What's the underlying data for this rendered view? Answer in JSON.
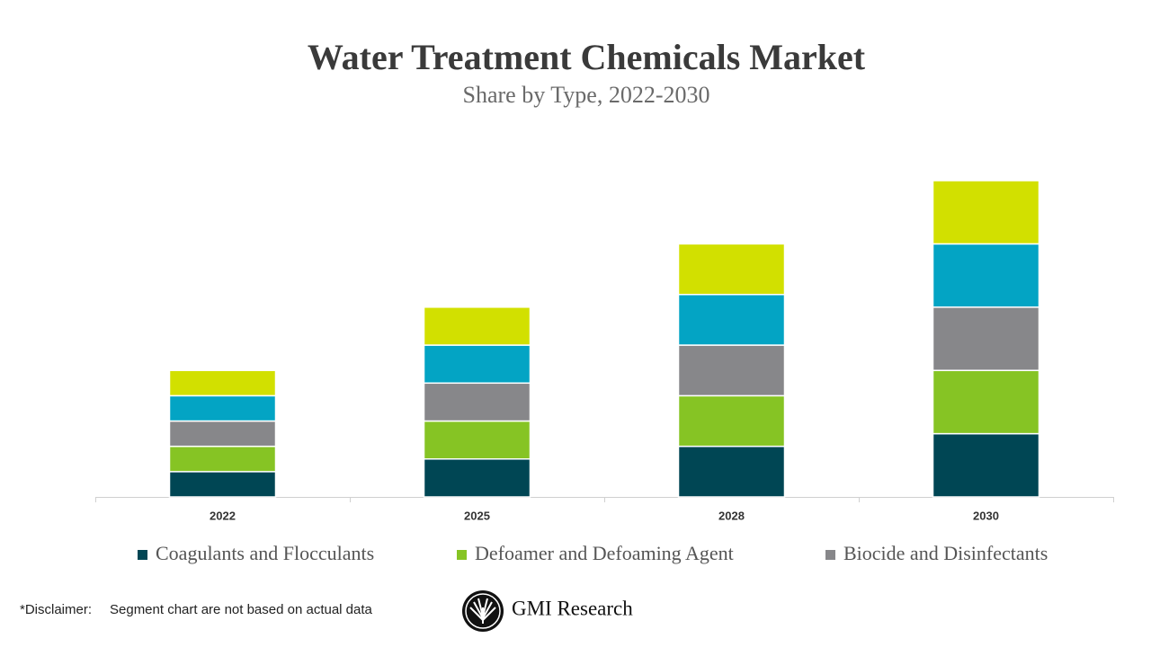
{
  "chart_data": {
    "type": "stacked_bar",
    "title": "Water Treatment Chemicals Market",
    "subtitle": "Share by Type, 2022-2030",
    "categories": [
      "2022",
      "2025",
      "2028",
      "2030"
    ],
    "series": [
      {
        "name": "Coagulants and Flocculants",
        "color": "#004654",
        "values": [
          1,
          1.5,
          2,
          2.5
        ]
      },
      {
        "name": "Defoamer and Defoaming Agent",
        "color": "#86c424",
        "values": [
          1,
          1.5,
          2,
          2.5
        ]
      },
      {
        "name": "Biocide and Disinfectants",
        "color": "#87878a",
        "values": [
          1,
          1.5,
          2,
          2.5
        ]
      },
      {
        "name": null,
        "color": "#03a4c4",
        "values": [
          1,
          1.5,
          2,
          2.5
        ]
      },
      {
        "name": null,
        "color": "#d2e000",
        "values": [
          1,
          1.5,
          2,
          2.5
        ]
      }
    ],
    "ylim": [
      0,
      12.5
    ]
  },
  "footer": {
    "disclaimer_label": "*Disclaimer:",
    "disclaimer": "Segment chart are not based on actual data",
    "brand": "GMI Research"
  }
}
